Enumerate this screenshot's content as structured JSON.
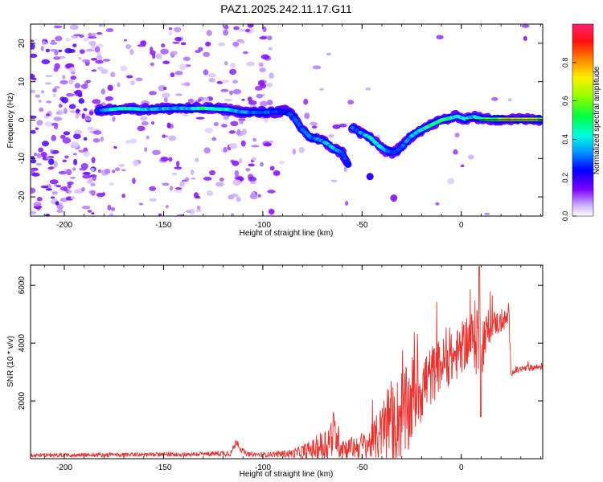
{
  "title": "PAZ1.2025.242.11.17.G11",
  "spectrogram": {
    "type": "heatmap",
    "xlabel": "Height of straight line (km)",
    "ylabel": "Frequency (Hz)",
    "xlim": [
      -217,
      41
    ],
    "ylim": [
      -25,
      25
    ],
    "xticks": [
      -200,
      -150,
      -100,
      -50,
      0
    ],
    "yticks": [
      -20,
      -10,
      0,
      10,
      20
    ],
    "ridge": [
      {
        "x": -183,
        "y": 2.5,
        "amp": 0.38
      },
      {
        "x": -178,
        "y": 2.7,
        "amp": 0.55
      },
      {
        "x": -172,
        "y": 3.0,
        "amp": 0.62
      },
      {
        "x": -166,
        "y": 3.0,
        "amp": 0.66
      },
      {
        "x": -160,
        "y": 2.8,
        "amp": 0.55
      },
      {
        "x": -154,
        "y": 2.9,
        "amp": 0.48
      },
      {
        "x": -148,
        "y": 3.0,
        "amp": 0.5
      },
      {
        "x": -142,
        "y": 3.1,
        "amp": 0.44
      },
      {
        "x": -136,
        "y": 3.0,
        "amp": 0.55
      },
      {
        "x": -130,
        "y": 3.1,
        "amp": 0.7
      },
      {
        "x": -124,
        "y": 2.9,
        "amp": 0.62
      },
      {
        "x": -118,
        "y": 2.8,
        "amp": 0.58
      },
      {
        "x": -112,
        "y": 2.2,
        "amp": 0.48
      },
      {
        "x": -106,
        "y": 2.0,
        "amp": 0.44
      },
      {
        "x": -100,
        "y": 2.0,
        "amp": 0.42
      },
      {
        "x": -94,
        "y": 2.1,
        "amp": 0.4
      },
      {
        "x": -88,
        "y": 2.4,
        "amp": 0.34
      },
      {
        "x": -84,
        "y": 0.5,
        "amp": 0.38
      },
      {
        "x": -80,
        "y": -2.5,
        "amp": 0.4
      },
      {
        "x": -76,
        "y": -4.5,
        "amp": 0.42
      },
      {
        "x": -72,
        "y": -5.0,
        "amp": 0.44
      },
      {
        "x": -68,
        "y": -6.0,
        "amp": 0.46
      },
      {
        "x": -64,
        "y": -7.5,
        "amp": 0.52
      },
      {
        "x": -60,
        "y": -8.5,
        "amp": 0.42
      },
      {
        "x": -57,
        "y": -11.5,
        "amp": 0.3
      },
      {
        "x": -55,
        "y": -2.0,
        "amp": 0.38
      },
      {
        "x": -50,
        "y": -3.5,
        "amp": 0.45
      },
      {
        "x": -46,
        "y": -4.5,
        "amp": 0.62
      },
      {
        "x": -42,
        "y": -6.5,
        "amp": 0.55
      },
      {
        "x": -38,
        "y": -8.0,
        "amp": 0.45
      },
      {
        "x": -34,
        "y": -8.5,
        "amp": 0.4
      },
      {
        "x": -30,
        "y": -7.0,
        "amp": 0.42
      },
      {
        "x": -26,
        "y": -4.5,
        "amp": 0.48
      },
      {
        "x": -22,
        "y": -3.0,
        "amp": 0.55
      },
      {
        "x": -18,
        "y": -2.0,
        "amp": 0.62
      },
      {
        "x": -14,
        "y": -1.0,
        "amp": 0.66
      },
      {
        "x": -10,
        "y": 0.0,
        "amp": 0.72
      },
      {
        "x": -6,
        "y": 0.5,
        "amp": 0.65
      },
      {
        "x": -2,
        "y": 1.0,
        "amp": 0.55
      },
      {
        "x": 2,
        "y": 0.3,
        "amp": 0.6
      },
      {
        "x": 6,
        "y": 1.0,
        "amp": 0.45
      },
      {
        "x": 10,
        "y": 0.3,
        "amp": 0.7
      },
      {
        "x": 15,
        "y": 0.2,
        "amp": 0.78
      },
      {
        "x": 20,
        "y": 0.2,
        "amp": 0.88
      },
      {
        "x": 25,
        "y": 0.2,
        "amp": 0.98
      },
      {
        "x": 30,
        "y": 0.2,
        "amp": 0.94
      },
      {
        "x": 35,
        "y": 0.2,
        "amp": 0.9
      },
      {
        "x": 40,
        "y": 0.2,
        "amp": 0.85
      }
    ],
    "colorbar": {
      "label": "Normalized spectral amplitude",
      "ticks": [
        "0.0",
        "0.2",
        "0.4",
        "0.6",
        "0.8"
      ],
      "tick_values": [
        0,
        0.2,
        0.4,
        0.6,
        0.8
      ],
      "range": [
        0,
        1
      ]
    }
  },
  "snr": {
    "type": "line",
    "xlabel": "Height of straight line (km)",
    "ylabel": "SNR (10 * v/v)",
    "xlim": [
      -217,
      41
    ],
    "ylim": [
      0,
      6700
    ],
    "xticks": [
      -200,
      -150,
      -100,
      -50,
      0
    ],
    "yticks": [
      2000,
      4000,
      6000
    ],
    "color": "#e8322f",
    "envelope": {
      "x": [
        -217,
        -180,
        -130,
        -116,
        -113,
        -111,
        -108,
        -100,
        -85,
        -75,
        -68,
        -64,
        -62,
        -58,
        -52,
        -46,
        -40,
        -36,
        -34,
        -30,
        -27,
        -24,
        -20,
        -16,
        -10,
        -6,
        -2,
        2,
        6,
        8,
        10,
        12,
        16,
        20,
        22,
        24,
        25,
        26,
        30,
        41
      ],
      "base": [
        120,
        130,
        160,
        200,
        620,
        320,
        150,
        140,
        180,
        320,
        500,
        950,
        600,
        350,
        420,
        520,
        900,
        1400,
        1150,
        1600,
        1500,
        2300,
        2500,
        2800,
        3300,
        3400,
        3600,
        4000,
        4200,
        4300,
        3900,
        4300,
        4700,
        4700,
        4800,
        4900,
        3000,
        3000,
        3100,
        3200
      ],
      "noise": [
        70,
        70,
        80,
        120,
        150,
        120,
        80,
        80,
        150,
        350,
        650,
        800,
        600,
        350,
        450,
        550,
        1000,
        1600,
        1300,
        1700,
        1600,
        1500,
        1300,
        1100,
        900,
        900,
        900,
        900,
        1000,
        1600,
        1300,
        700,
        450,
        400,
        350,
        350,
        130,
        120,
        120,
        120
      ]
    }
  }
}
